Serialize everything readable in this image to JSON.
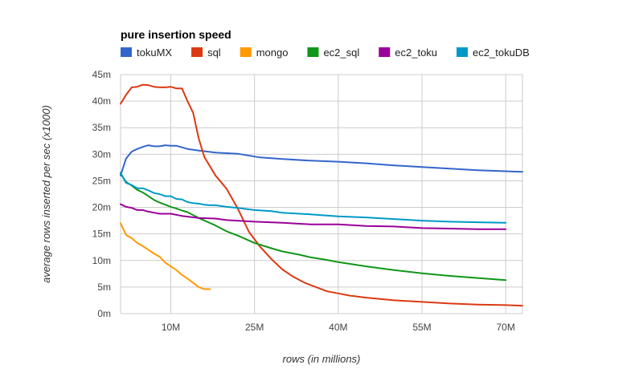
{
  "chart_data": {
    "type": "line",
    "title": "pure insertion speed",
    "xlabel": "rows (in millions)",
    "ylabel": "average rows inserted per sec (x1000)",
    "xlim": [
      1,
      73
    ],
    "ylim": [
      0,
      45
    ],
    "x_ticks": [
      10,
      25,
      40,
      55,
      70
    ],
    "x_tick_labels": [
      "10M",
      "25M",
      "40M",
      "55M",
      "70M"
    ],
    "y_ticks": [
      0,
      5,
      10,
      15,
      20,
      25,
      30,
      35,
      40,
      45
    ],
    "y_tick_labels": [
      "0m",
      "5m",
      "10m",
      "15m",
      "20m",
      "25m",
      "30m",
      "35m",
      "40m",
      "45m"
    ],
    "grid": true,
    "legend_position": "top",
    "series": [
      {
        "name": "tokuMX",
        "color": "#3366cc",
        "x": [
          1,
          2,
          3,
          4,
          5,
          6,
          7,
          8,
          9,
          10,
          11,
          12,
          13,
          15,
          18,
          22,
          26,
          30,
          35,
          40,
          45,
          50,
          55,
          60,
          65,
          70,
          73
        ],
        "y": [
          26,
          29.2,
          30.5,
          31,
          31.4,
          31.7,
          31.5,
          31.5,
          31.7,
          31.6,
          31.6,
          31.3,
          31,
          30.7,
          30.3,
          30.1,
          29.4,
          29.1,
          28.8,
          28.6,
          28.3,
          27.9,
          27.6,
          27.3,
          27,
          26.8,
          26.7
        ]
      },
      {
        "name": "sql",
        "color": "#dc3912",
        "x": [
          1,
          2,
          3,
          4,
          5,
          6,
          7,
          8,
          9,
          10,
          11,
          12,
          13,
          14,
          15,
          16,
          18,
          20,
          22,
          24,
          26,
          28,
          30,
          32,
          34,
          36,
          38,
          40,
          42,
          45,
          50,
          55,
          60,
          65,
          70,
          73
        ],
        "y": [
          39.5,
          41.2,
          42.6,
          42.7,
          43.1,
          43,
          42.7,
          42.6,
          42.6,
          42.7,
          42.4,
          42.4,
          40,
          37.8,
          33,
          29.5,
          26,
          23.5,
          19.8,
          15.4,
          12.6,
          10.3,
          8.3,
          6.9,
          5.8,
          5,
          4.2,
          3.8,
          3.4,
          3,
          2.5,
          2.2,
          1.9,
          1.7,
          1.6,
          1.5
        ]
      },
      {
        "name": "mongo",
        "color": "#ff9900",
        "x": [
          1,
          2,
          3,
          4,
          5,
          6,
          7,
          8,
          9,
          10,
          11,
          12,
          13,
          14,
          15,
          16,
          17
        ],
        "y": [
          17,
          14.8,
          14.2,
          13.3,
          12.7,
          12,
          11.3,
          10.7,
          9.6,
          8.9,
          8.2,
          7.3,
          6.6,
          5.8,
          5,
          4.6,
          4.6
        ]
      },
      {
        "name": "ec2_sql",
        "color": "#109618",
        "x": [
          1,
          2,
          3,
          4,
          5,
          6,
          7,
          8,
          9,
          10,
          11,
          12,
          13,
          15,
          18,
          20,
          22,
          25,
          28,
          30,
          33,
          35,
          38,
          40,
          45,
          50,
          55,
          60,
          65,
          70
        ],
        "y": [
          26.3,
          24.8,
          24.1,
          23.3,
          22.8,
          22.1,
          21.4,
          20.9,
          20.5,
          20.1,
          19.8,
          19.4,
          19.1,
          18,
          16.6,
          15.5,
          14.7,
          13.3,
          12.3,
          11.7,
          11.1,
          10.6,
          10.1,
          9.7,
          8.9,
          8.2,
          7.6,
          7.1,
          6.7,
          6.3
        ]
      },
      {
        "name": "ec2_toku",
        "color": "#990099",
        "x": [
          1,
          2,
          3,
          4,
          5,
          6,
          7,
          8,
          9,
          10,
          12,
          15,
          18,
          20,
          25,
          30,
          35,
          40,
          45,
          50,
          55,
          60,
          65,
          70
        ],
        "y": [
          20.6,
          20.1,
          19.9,
          19.5,
          19.5,
          19.2,
          19,
          18.8,
          18.8,
          18.8,
          18.4,
          18,
          17.9,
          17.6,
          17.3,
          17.1,
          16.8,
          16.8,
          16.5,
          16.4,
          16.1,
          16,
          15.9,
          15.9
        ]
      },
      {
        "name": "ec2_tokuDB",
        "color": "#0099c6",
        "x": [
          1,
          2,
          3,
          4,
          5,
          6,
          7,
          8,
          9,
          10,
          11,
          12,
          13,
          14,
          15,
          16,
          17,
          18,
          20,
          22,
          25,
          28,
          30,
          35,
          40,
          45,
          50,
          55,
          60,
          65,
          70
        ],
        "y": [
          26.5,
          24.6,
          24.2,
          23.6,
          23.6,
          23.2,
          22.7,
          22.5,
          22.1,
          22.1,
          21.6,
          21.5,
          21,
          20.8,
          20.7,
          20.5,
          20.4,
          20.4,
          20.1,
          19.9,
          19.5,
          19.3,
          19,
          18.7,
          18.3,
          18.1,
          17.8,
          17.5,
          17.3,
          17.2,
          17.1
        ]
      }
    ]
  }
}
